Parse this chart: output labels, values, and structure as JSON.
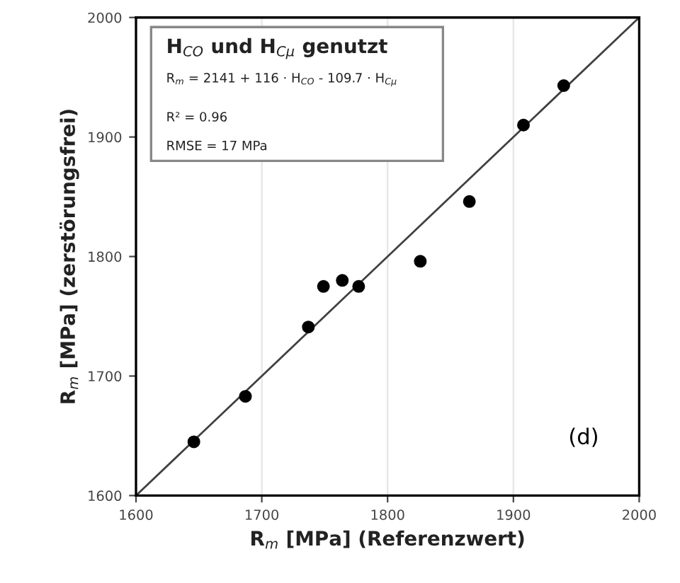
{
  "chart_data": {
    "type": "scatter",
    "xlabel": "R$_{m}$ [MPa] (Referenzwert)",
    "ylabel": "R$_{m}$ [MPa] (zerstörungsfrei)",
    "xlim": [
      1600,
      2000
    ],
    "ylim": [
      1600,
      2000
    ],
    "xticks": [
      1600,
      1700,
      1800,
      1900,
      2000
    ],
    "yticks": [
      1600,
      1700,
      1800,
      1900,
      2000
    ],
    "grid": "x",
    "series": [
      {
        "marker": "circle",
        "color": "#000000",
        "x": [
          1646,
          1687,
          1737,
          1749,
          1764,
          1777,
          1826,
          1865,
          1908,
          1940
        ],
        "values": [
          1645,
          1683,
          1741,
          1775,
          1780,
          1775,
          1796,
          1846,
          1910,
          1943
        ]
      },
      {
        "type": "line",
        "marker": "none",
        "color": "#404040",
        "x": [
          1600,
          2000
        ],
        "values": [
          1600,
          2000
        ]
      }
    ],
    "annotations": [
      "H$_{CO}$ und H$_{Cμ}$ genutzt",
      "R$_{m}$ = 2141 + 116 · H$_{CO}$ - 109.7 · H$_{Cμ}$",
      "R² = 0.96",
      "RMSE = 17 MPa",
      "(d)"
    ]
  }
}
